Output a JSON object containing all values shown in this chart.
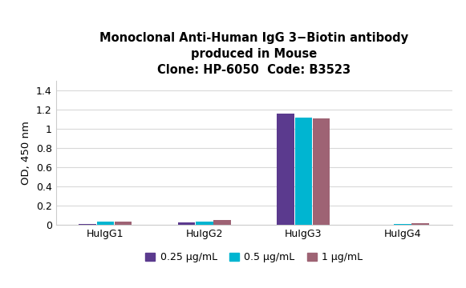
{
  "title_line1": "Monoclonal Anti-Human IgG 3−Biotin antibody",
  "title_line2": "produced in Mouse",
  "title_line3": "Clone: HP-6050  Code: B3523",
  "categories": [
    "HuIgG1",
    "HuIgG2",
    "HuIgG3",
    "HuIgG4"
  ],
  "series_labels": [
    "0.25 μg/mL",
    "0.5 μg/mL",
    "1 μg/mL"
  ],
  "series_colors": [
    "#5b3a8e",
    "#00b5d1",
    "#9e6374"
  ],
  "values": [
    [
      0.01,
      0.03,
      0.03
    ],
    [
      0.025,
      0.035,
      0.05
    ],
    [
      1.155,
      1.115,
      1.105
    ],
    [
      0.0,
      0.01,
      0.018
    ]
  ],
  "ylabel": "OD, 450 nm",
  "ylim": [
    0,
    1.5
  ],
  "yticks": [
    0,
    0.2,
    0.4,
    0.6,
    0.8,
    1.0,
    1.2,
    1.4
  ],
  "background_color": "#ffffff",
  "bar_width": 0.18,
  "title_fontsize": 10.5,
  "axis_fontsize": 9.5,
  "tick_fontsize": 9,
  "legend_fontsize": 9
}
